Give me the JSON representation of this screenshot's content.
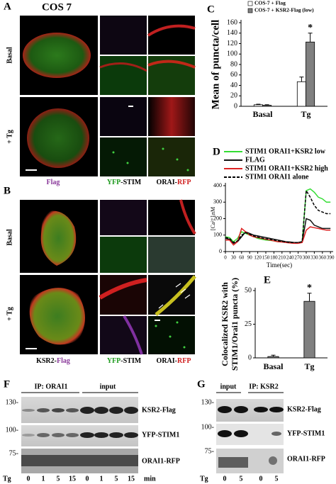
{
  "figure": {
    "A": {
      "label": "A",
      "title": "COS 7",
      "rows": [
        "Basal",
        "+ Tg"
      ],
      "channels": [
        [
          "Flag"
        ],
        [
          "YFP",
          "-STIM"
        ],
        [
          "ORAI-",
          "RFP"
        ]
      ]
    },
    "B": {
      "label": "B",
      "rows": [
        "Basal",
        "+ Tg"
      ],
      "channels": [
        [
          "KSR2-",
          "Flag"
        ],
        [
          "YFP",
          "-STIM"
        ],
        [
          "ORAI-",
          "RFP"
        ]
      ]
    },
    "F": {
      "label": "F",
      "groups": [
        "IP: ORAI1",
        "input"
      ],
      "markers": [
        "130-",
        "100-",
        "75-"
      ],
      "bands": [
        "KSR2-Flag",
        "YFP-STIM1",
        "ORAI1-RFP"
      ],
      "lane_title": "Tg",
      "lanes": [
        "0",
        "1",
        "5",
        "15",
        "0",
        "1",
        "5",
        "15"
      ],
      "unit": "min"
    },
    "G": {
      "label": "G",
      "groups": [
        "input",
        "IP: KSR2"
      ],
      "markers": [
        "130-",
        "100-",
        "75-"
      ],
      "bands": [
        "KSR2-Flag",
        "YFP-STIM1",
        "ORAI1-RFP"
      ],
      "lane_title": "Tg",
      "lanes": [
        "0",
        "5",
        "0",
        "5"
      ]
    }
  },
  "chart_data": [
    {
      "panel": "C",
      "type": "bar",
      "ylabel": "Mean of puncta/cell",
      "categories": [
        "Basal",
        "Tg"
      ],
      "series": [
        {
          "name": "COS-7 + Flag",
          "color": "#ffffff",
          "values": [
            3,
            47
          ],
          "error": [
            1,
            9
          ]
        },
        {
          "name": "COS-7 + KSR2-Flag (low)",
          "color": "#808080",
          "values": [
            2,
            123
          ],
          "error": [
            1,
            17
          ],
          "labels": [
            null,
            "*"
          ]
        }
      ],
      "ylim": [
        0,
        160
      ],
      "yticks": [
        0,
        20,
        40,
        60,
        80,
        100,
        120,
        140,
        160
      ]
    },
    {
      "panel": "D",
      "type": "line",
      "ylabel": "[Ca²⁺]ᵢnM",
      "xlabel": "Time(sec)",
      "x": [
        0,
        15,
        30,
        45,
        60,
        75,
        90,
        105,
        120,
        135,
        150,
        165,
        180,
        195,
        210,
        225,
        240,
        255,
        270,
        285,
        300,
        315,
        330,
        345,
        360,
        375,
        390
      ],
      "series": [
        {
          "name": "STIM1 ORAI1+KSR2 low",
          "color": "#33dd33",
          "values": [
            90,
            85,
            60,
            80,
            120,
            110,
            100,
            90,
            80,
            75,
            70,
            68,
            65,
            60,
            60,
            58,
            55,
            55,
            55,
            60,
            370,
            380,
            360,
            330,
            320,
            300,
            300
          ]
        },
        {
          "name": "FLAG",
          "color": "#111111",
          "values": [
            80,
            75,
            50,
            60,
            90,
            120,
            110,
            100,
            95,
            90,
            85,
            80,
            75,
            70,
            65,
            60,
            58,
            55,
            55,
            60,
            200,
            190,
            160,
            150,
            140,
            140,
            140
          ]
        },
        {
          "name": "STIM1 ORAI1+KSR2 high",
          "color": "#dd2222",
          "values": [
            70,
            70,
            40,
            60,
            140,
            120,
            100,
            90,
            85,
            80,
            75,
            70,
            65,
            60,
            58,
            55,
            52,
            50,
            50,
            55,
            130,
            150,
            145,
            140,
            135,
            130,
            130
          ]
        },
        {
          "name": "STIM1 ORAI1 alone",
          "color": "#000000",
          "dash": true,
          "values": [
            85,
            80,
            55,
            65,
            100,
            115,
            105,
            95,
            88,
            82,
            78,
            75,
            70,
            65,
            62,
            58,
            55,
            55,
            55,
            60,
            370,
            330,
            280,
            250,
            240,
            230,
            230
          ]
        }
      ],
      "xlim": [
        0,
        400
      ],
      "xticks": [
        0,
        30,
        60,
        90,
        120,
        150,
        180,
        210,
        240,
        270,
        300,
        330,
        360,
        390
      ],
      "ylim": [
        0,
        400
      ],
      "yticks": [
        0,
        100,
        200,
        300,
        400
      ]
    },
    {
      "panel": "E",
      "type": "bar",
      "ylabel": [
        "Colocalized KSR2 with",
        "STIM1/Orai1 puncta (%)"
      ],
      "categories": [
        "Basal",
        "Tg"
      ],
      "values": [
        1,
        42
      ],
      "error": [
        1,
        6
      ],
      "labels": [
        null,
        "*"
      ],
      "color": "#808080",
      "ylim": [
        0,
        50
      ],
      "yticks": [
        0,
        25,
        50
      ]
    }
  ]
}
